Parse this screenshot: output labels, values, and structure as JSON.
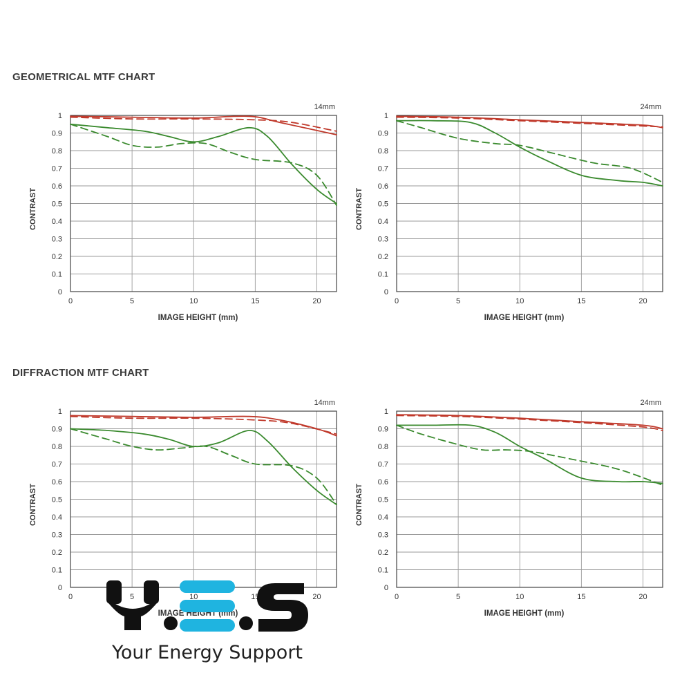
{
  "sections": [
    {
      "title": "GEOMETRICAL MTF CHART"
    },
    {
      "title": "DIFFRACTION MTF CHART"
    }
  ],
  "chart_data": [
    {
      "type": "line",
      "section": "GEOMETRICAL MTF CHART",
      "focal_label": "14mm",
      "xlabel": "IMAGE HEIGHT (mm)",
      "ylabel": "CONTRAST",
      "xlim": [
        0,
        21.6
      ],
      "ylim": [
        0,
        1
      ],
      "xticks": [
        0,
        5,
        10,
        15,
        20
      ],
      "yticks": [
        0,
        0.1,
        0.2,
        0.3,
        0.4,
        0.5,
        0.6,
        0.7,
        0.8,
        0.9,
        1
      ],
      "grid": true,
      "series": [
        {
          "color": "#c0392b",
          "dash": false,
          "x": [
            0,
            5,
            10,
            14.5,
            17,
            21.6
          ],
          "y": [
            0.995,
            0.99,
            0.985,
            0.995,
            0.96,
            0.89
          ]
        },
        {
          "color": "#c0392b",
          "dash": true,
          "x": [
            0,
            5,
            10,
            15,
            18,
            21.6
          ],
          "y": [
            0.99,
            0.98,
            0.98,
            0.975,
            0.96,
            0.91
          ]
        },
        {
          "color": "#3a8a2e",
          "dash": false,
          "x": [
            0,
            3,
            6,
            8,
            10,
            12,
            14.5,
            16,
            18,
            20,
            21.6
          ],
          "y": [
            0.95,
            0.93,
            0.91,
            0.88,
            0.85,
            0.88,
            0.93,
            0.88,
            0.72,
            0.58,
            0.5
          ]
        },
        {
          "color": "#3a8a2e",
          "dash": true,
          "x": [
            0,
            3,
            5,
            7,
            9,
            11,
            13,
            15,
            18,
            20,
            21.6
          ],
          "y": [
            0.95,
            0.88,
            0.83,
            0.82,
            0.84,
            0.84,
            0.79,
            0.75,
            0.73,
            0.66,
            0.49
          ]
        }
      ]
    },
    {
      "type": "line",
      "section": "GEOMETRICAL MTF CHART",
      "focal_label": "24mm",
      "xlabel": "IMAGE HEIGHT (mm)",
      "ylabel": "CONTRAST",
      "xlim": [
        0,
        21.6
      ],
      "ylim": [
        0,
        1
      ],
      "xticks": [
        0,
        5,
        10,
        15,
        20
      ],
      "yticks": [
        0,
        0.1,
        0.2,
        0.3,
        0.4,
        0.5,
        0.6,
        0.7,
        0.8,
        0.9,
        1
      ],
      "grid": true,
      "series": [
        {
          "color": "#c0392b",
          "dash": false,
          "x": [
            0,
            5,
            10,
            15,
            20,
            21.6
          ],
          "y": [
            0.995,
            0.99,
            0.975,
            0.96,
            0.945,
            0.93
          ]
        },
        {
          "color": "#c0392b",
          "dash": true,
          "x": [
            0,
            5,
            10,
            15,
            20,
            21.6
          ],
          "y": [
            0.99,
            0.985,
            0.97,
            0.955,
            0.94,
            0.935
          ]
        },
        {
          "color": "#3a8a2e",
          "dash": false,
          "x": [
            0,
            3,
            6,
            8,
            10,
            12,
            15,
            18,
            20,
            21.6
          ],
          "y": [
            0.97,
            0.97,
            0.96,
            0.9,
            0.82,
            0.75,
            0.66,
            0.63,
            0.62,
            0.6
          ]
        },
        {
          "color": "#3a8a2e",
          "dash": true,
          "x": [
            0,
            2,
            5,
            8,
            10,
            13,
            16,
            19,
            21.6
          ],
          "y": [
            0.97,
            0.93,
            0.87,
            0.84,
            0.83,
            0.78,
            0.73,
            0.7,
            0.62
          ]
        }
      ]
    },
    {
      "type": "line",
      "section": "DIFFRACTION MTF CHART",
      "focal_label": "14mm",
      "xlabel": "IMAGE HEIGHT (mm)",
      "ylabel": "CONTRAST",
      "xlim": [
        0,
        21.6
      ],
      "ylim": [
        0,
        1
      ],
      "xticks": [
        0,
        5,
        10,
        15,
        20
      ],
      "yticks": [
        0,
        0.1,
        0.2,
        0.3,
        0.4,
        0.5,
        0.6,
        0.7,
        0.8,
        0.9,
        1
      ],
      "grid": true,
      "series": [
        {
          "color": "#c0392b",
          "dash": false,
          "x": [
            0,
            5,
            10,
            14.5,
            17,
            20,
            21.6
          ],
          "y": [
            0.975,
            0.97,
            0.965,
            0.97,
            0.95,
            0.9,
            0.86
          ]
        },
        {
          "color": "#c0392b",
          "dash": true,
          "x": [
            0,
            5,
            10,
            15,
            18,
            21.6
          ],
          "y": [
            0.97,
            0.96,
            0.96,
            0.95,
            0.93,
            0.87
          ]
        },
        {
          "color": "#3a8a2e",
          "dash": false,
          "x": [
            0,
            3,
            6,
            8,
            10,
            12,
            14.5,
            16,
            18,
            20,
            21.6
          ],
          "y": [
            0.9,
            0.89,
            0.87,
            0.84,
            0.8,
            0.82,
            0.89,
            0.83,
            0.68,
            0.55,
            0.47
          ]
        },
        {
          "color": "#3a8a2e",
          "dash": true,
          "x": [
            0,
            3,
            5,
            7,
            9,
            11,
            13,
            15,
            18,
            20,
            21.6
          ],
          "y": [
            0.9,
            0.84,
            0.8,
            0.78,
            0.79,
            0.8,
            0.75,
            0.7,
            0.69,
            0.62,
            0.47
          ]
        }
      ]
    },
    {
      "type": "line",
      "section": "DIFFRACTION MTF CHART",
      "focal_label": "24mm",
      "xlabel": "IMAGE HEIGHT (mm)",
      "ylabel": "CONTRAST",
      "xlim": [
        0,
        21.6
      ],
      "ylim": [
        0,
        1
      ],
      "xticks": [
        0,
        5,
        10,
        15,
        20
      ],
      "yticks": [
        0,
        0.1,
        0.2,
        0.3,
        0.4,
        0.5,
        0.6,
        0.7,
        0.8,
        0.9,
        1
      ],
      "grid": true,
      "series": [
        {
          "color": "#c0392b",
          "dash": false,
          "x": [
            0,
            5,
            10,
            15,
            20,
            21.6
          ],
          "y": [
            0.98,
            0.975,
            0.96,
            0.94,
            0.92,
            0.9
          ]
        },
        {
          "color": "#c0392b",
          "dash": true,
          "x": [
            0,
            5,
            10,
            15,
            20,
            21.6
          ],
          "y": [
            0.975,
            0.97,
            0.955,
            0.935,
            0.91,
            0.89
          ]
        },
        {
          "color": "#3a8a2e",
          "dash": false,
          "x": [
            0,
            3,
            6,
            8,
            10,
            12,
            15,
            18,
            20,
            21.6
          ],
          "y": [
            0.92,
            0.92,
            0.92,
            0.88,
            0.8,
            0.73,
            0.62,
            0.6,
            0.6,
            0.59
          ]
        },
        {
          "color": "#3a8a2e",
          "dash": true,
          "x": [
            0,
            2,
            5,
            7,
            9,
            11,
            14,
            18,
            21.6
          ],
          "y": [
            0.92,
            0.87,
            0.81,
            0.78,
            0.78,
            0.77,
            0.73,
            0.67,
            0.58
          ]
        }
      ]
    }
  ],
  "logo": {
    "text": "Your Energy Support",
    "colors": {
      "dark": "#111111",
      "accent": "#1fb4e0"
    }
  }
}
